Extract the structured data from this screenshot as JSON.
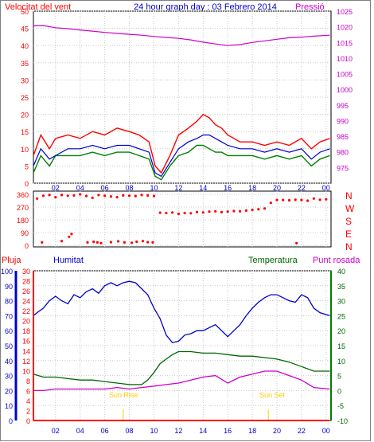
{
  "header": {
    "left_label": "Velocitat del vent",
    "title": "24 hour graph day : 03 Febrero 2014",
    "right_label": "Pressió"
  },
  "wind_dir_labels": [
    "N",
    "W",
    "S",
    "E",
    "N"
  ],
  "lower_header": {
    "rain_label": "Pluja",
    "humidity_label": "Humitat",
    "temp_label": "Temperatura",
    "dewpoint_label": "Punt rosada"
  },
  "annotations": {
    "sunrise": "Sun Rise",
    "sunset": "Sun Set"
  },
  "colors": {
    "wind_gust": "#ff0000",
    "wind_avg": "#0000cc",
    "wind_speed": "#008000",
    "pressure": "#cc00cc",
    "direction": "#ff0000",
    "humidity": "#0000cc",
    "temperature": "#006600",
    "dewpoint": "#cc00cc",
    "rain": "#ff0000",
    "sun": "#ffcc00"
  },
  "chart_data": [
    {
      "type": "line",
      "name": "wind_pressure",
      "title": "24 hour graph day : 03 Febrero 2014",
      "x_ticks": [
        "02",
        "04",
        "06",
        "08",
        "10",
        "12",
        "14",
        "16",
        "18",
        "20",
        "22",
        "00"
      ],
      "x_tick_hours": [
        2,
        4,
        6,
        8,
        10,
        12,
        14,
        16,
        18,
        20,
        22,
        24
      ],
      "x_range_hours": [
        0.2,
        24.4
      ],
      "y_left": {
        "label": "Velocitat del vent",
        "range": [
          0,
          50
        ],
        "ticks": [
          0,
          5,
          10,
          15,
          20,
          25,
          30,
          35,
          40,
          45,
          50
        ]
      },
      "y_right": {
        "label": "Pressió",
        "range": [
          970,
          1025
        ],
        "ticks": [
          975,
          980,
          985,
          990,
          995,
          1000,
          1005,
          1010,
          1015,
          1020,
          1025
        ]
      },
      "series": [
        {
          "name": "wind_gust",
          "x": [
            0.2,
            0.8,
            1.5,
            2,
            3,
            4,
            5,
            6,
            7,
            8,
            8.8,
            9.6,
            10.1,
            10.6,
            11.3,
            12,
            12.8,
            13.5,
            14,
            14.5,
            15,
            15.5,
            16,
            17,
            18,
            19,
            20,
            21,
            22,
            22.8,
            23.5,
            24.3
          ],
          "y": [
            8,
            14,
            10,
            13,
            14,
            13,
            15,
            14,
            16,
            15,
            14,
            12,
            5,
            3,
            8,
            14,
            16,
            18,
            20,
            19,
            17,
            16,
            14,
            12,
            12,
            11,
            12,
            11,
            13,
            10,
            12,
            13
          ]
        },
        {
          "name": "wind_avg",
          "x": [
            0.2,
            0.8,
            1.5,
            2,
            3,
            4,
            5,
            6,
            7,
            8,
            8.8,
            9.6,
            10.1,
            10.6,
            11.3,
            12,
            12.8,
            13.5,
            14,
            14.5,
            15,
            15.5,
            16,
            17,
            18,
            19,
            20,
            21,
            22,
            22.8,
            23.5,
            24.3
          ],
          "y": [
            5,
            10,
            7,
            8,
            10,
            10,
            11,
            10,
            11,
            11,
            10,
            9,
            3,
            2,
            6,
            10,
            12,
            13,
            14,
            14,
            13,
            12,
            11,
            10,
            10,
            9,
            10,
            9,
            10,
            7,
            9,
            10
          ]
        },
        {
          "name": "wind_speed",
          "x": [
            0.2,
            0.8,
            1.5,
            2,
            3,
            4,
            5,
            6,
            7,
            8,
            8.8,
            9.6,
            10.1,
            10.6,
            11.3,
            12,
            12.8,
            13.5,
            14,
            14.5,
            15,
            15.5,
            16,
            17,
            18,
            19,
            20,
            21,
            22,
            22.8,
            23.5,
            24.3
          ],
          "y": [
            3,
            8,
            5,
            8,
            8,
            8,
            9,
            8,
            9,
            9,
            8,
            7,
            2,
            1,
            5,
            8,
            9,
            11,
            11,
            10,
            9,
            9,
            8,
            8,
            8,
            7,
            8,
            7,
            8,
            5,
            7,
            8
          ]
        },
        {
          "name": "pressure",
          "x": [
            0.2,
            1,
            2,
            3,
            4,
            5,
            6,
            7,
            8,
            9,
            10,
            11,
            12,
            13,
            14,
            15,
            16,
            17,
            18,
            19,
            20,
            21,
            22,
            23,
            24.3
          ],
          "y": [
            1020.3,
            1020.4,
            1019.7,
            1019.4,
            1019,
            1018.6,
            1018.2,
            1017.9,
            1017.6,
            1017.3,
            1016.9,
            1016.6,
            1016.3,
            1015.8,
            1015.1,
            1014.5,
            1014.0,
            1014.3,
            1015.0,
            1015.5,
            1016.0,
            1016.5,
            1016.7,
            1017.0,
            1017.3
          ]
        }
      ]
    },
    {
      "type": "scatter",
      "name": "wind_direction",
      "y_range": [
        0,
        360
      ],
      "y_ticks": [
        0,
        90,
        180,
        270,
        360
      ],
      "series": [
        {
          "name": "direction_main",
          "x": [
            0.5,
            1,
            1.5,
            2,
            2.5,
            3,
            3.5,
            4,
            4.5,
            5,
            5.5,
            6,
            6.5,
            7,
            7.5,
            8,
            8.5,
            9,
            9.5,
            10,
            10.5,
            11,
            11.5,
            12,
            12.5,
            13,
            13.5,
            14,
            14.5,
            15,
            15.5,
            16,
            16.5,
            17,
            17.5,
            18,
            18.5,
            19,
            19.5,
            20,
            20.5,
            21,
            21.5,
            22,
            22.5,
            23,
            23.5,
            24
          ],
          "y": [
            330,
            350,
            355,
            340,
            355,
            350,
            352,
            360,
            348,
            335,
            355,
            350,
            345,
            340,
            352,
            350,
            348,
            355,
            352,
            348,
            230,
            228,
            232,
            222,
            228,
            226,
            235,
            232,
            238,
            240,
            234,
            238,
            242,
            240,
            245,
            250,
            255,
            260,
            300,
            320,
            320,
            318,
            322,
            320,
            315,
            330,
            322,
            325
          ]
        },
        {
          "name": "direction_north_low",
          "x": [
            0.9,
            2.5,
            3.1,
            3.3,
            4.6,
            5.1,
            5.4,
            5.7,
            6.5,
            7.1,
            7.6,
            8.2,
            8.6,
            9.1,
            9.5,
            9.9,
            21.6
          ],
          "y": [
            20,
            30,
            60,
            80,
            20,
            25,
            20,
            15,
            22,
            28,
            20,
            18,
            25,
            30,
            22,
            20,
            15
          ]
        }
      ]
    },
    {
      "type": "line",
      "name": "humidity_temperature",
      "x_ticks": [
        "02",
        "04",
        "06",
        "08",
        "10",
        "12",
        "14",
        "16",
        "18",
        "20",
        "22",
        "00"
      ],
      "y_humidity": {
        "label": "Humitat",
        "range": [
          0,
          100
        ],
        "ticks": [
          0,
          10,
          20,
          30,
          40,
          50,
          60,
          70,
          80,
          90,
          100
        ]
      },
      "y_rain": {
        "label": "Pluja",
        "range": [
          0,
          30
        ],
        "ticks": [
          0,
          2,
          4,
          6,
          8,
          10,
          12,
          14,
          16,
          18,
          20,
          22,
          24,
          26,
          28,
          30
        ]
      },
      "y_temperature": {
        "label": "Temperatura",
        "range": [
          -10,
          40
        ],
        "ticks": [
          -10,
          -5,
          0,
          5,
          10,
          15,
          20,
          25,
          30,
          35,
          40
        ]
      },
      "series": [
        {
          "name": "humidity",
          "x": [
            0.2,
            0.5,
            1,
            1.5,
            2,
            2.5,
            3,
            3.5,
            4,
            4.5,
            5,
            5.5,
            6,
            6.5,
            7,
            7.5,
            8,
            8.5,
            9,
            9.5,
            10,
            10.5,
            11,
            11.5,
            12,
            12.5,
            13,
            13.5,
            14,
            14.5,
            15,
            15.5,
            16,
            16.5,
            17,
            17.5,
            18,
            18.5,
            19,
            19.5,
            20,
            20.5,
            21,
            21.5,
            22,
            22.5,
            23,
            23.5,
            24.3
          ],
          "y": [
            70,
            72,
            75,
            80,
            83,
            80,
            78,
            84,
            82,
            86,
            88,
            85,
            90,
            92,
            90,
            92,
            93,
            92,
            88,
            84,
            75,
            68,
            57,
            52,
            53,
            57,
            58,
            60,
            60,
            62,
            64,
            60,
            56,
            60,
            64,
            70,
            75,
            79,
            82,
            84,
            84,
            82,
            80,
            79,
            84,
            82,
            75,
            72,
            70
          ]
        },
        {
          "name": "temperature",
          "x": [
            0.2,
            1,
            2,
            3,
            4,
            5,
            6,
            7,
            8,
            9,
            9.5,
            10,
            10.5,
            11,
            11.5,
            12,
            13,
            14,
            15,
            16,
            17,
            18,
            19,
            20,
            21,
            22,
            23,
            24.3
          ],
          "y": [
            5.5,
            4.5,
            4.5,
            4.0,
            3.5,
            3.5,
            3.0,
            2.5,
            2.0,
            2.0,
            3.5,
            6.0,
            9.0,
            10.5,
            12.0,
            13.0,
            13.0,
            12.5,
            12.5,
            12.0,
            11.5,
            11.5,
            11.0,
            10.5,
            9.5,
            8.0,
            6.5,
            6.5
          ]
        },
        {
          "name": "dewpoint",
          "x": [
            0.2,
            1,
            2,
            3,
            4,
            5,
            6,
            7,
            8,
            9,
            10,
            11,
            12,
            13,
            14,
            15,
            16,
            17,
            18,
            19,
            20,
            21,
            22,
            23,
            24.3
          ],
          "y": [
            0,
            0,
            0.5,
            0.5,
            0.5,
            0.5,
            0.5,
            1,
            0.5,
            1,
            1.5,
            2,
            2.5,
            3.5,
            4.5,
            5,
            2.5,
            4.5,
            5.5,
            6.5,
            6.5,
            5,
            3.5,
            1,
            0.5
          ]
        },
        {
          "name": "rain",
          "x": [
            0.2,
            24.3
          ],
          "y": [
            0,
            0
          ]
        }
      ],
      "markers": [
        {
          "label": "Sun Rise",
          "hour": 7.5
        },
        {
          "label": "Sun Set",
          "hour": 19.3
        }
      ]
    }
  ]
}
